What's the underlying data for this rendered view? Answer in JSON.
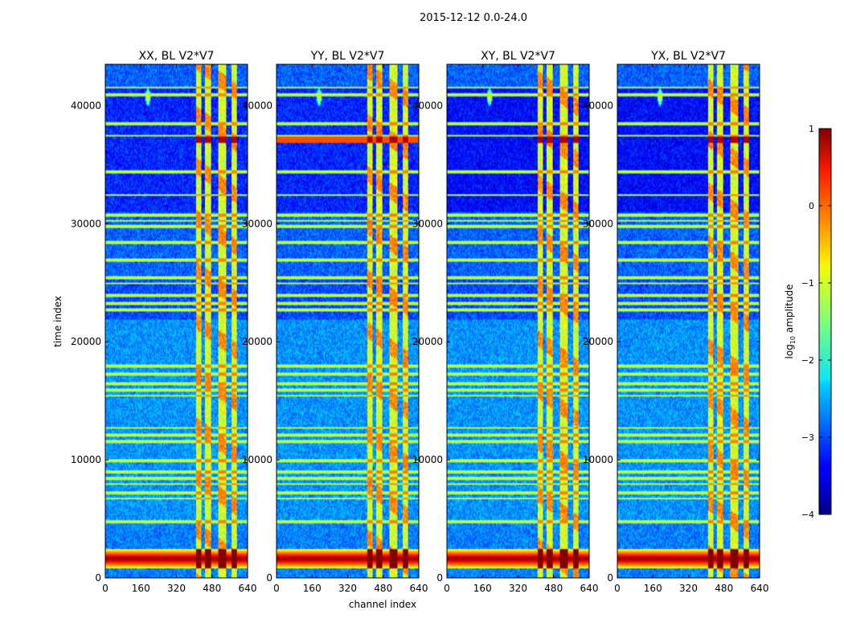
{
  "figure": {
    "suptitle": "2015-12-12 0.0-24.0"
  },
  "chart_data": {
    "type": "heatmap",
    "suptitle": "2015-12-12 0.0-24.0",
    "xlabel": "channel index",
    "ylabel": "time index",
    "xlim": [
      0,
      640
    ],
    "ylim": [
      0,
      43500
    ],
    "xticks": [
      0,
      160,
      320,
      480,
      640
    ],
    "yticks": [
      0,
      10000,
      20000,
      30000,
      40000
    ],
    "panels": [
      {
        "title": "XX, BL V2*V7",
        "polarization": "XX",
        "baseline": "V2*V7"
      },
      {
        "title": "YY, BL V2*V7",
        "polarization": "YY",
        "baseline": "V2*V7"
      },
      {
        "title": "XY, BL V2*V7",
        "polarization": "XY",
        "baseline": "V2*V7"
      },
      {
        "title": "YX, BL V2*V7",
        "polarization": "YX",
        "baseline": "V2*V7"
      }
    ],
    "colorbar": {
      "label": "log10 amplitude",
      "label_base": "log",
      "label_sub": "10",
      "label_rest": " amplitude",
      "range": [
        -4,
        1
      ],
      "ticks": [
        "1",
        "0",
        "−1",
        "−2",
        "−3",
        "−4"
      ],
      "colormap": "jet"
    },
    "features": {
      "bright_channel_bands": [
        [
          405,
          430
        ],
        [
          445,
          475
        ],
        [
          505,
          540
        ],
        [
          565,
          590
        ]
      ],
      "saturated_time_ranges": [
        [
          900,
          2500
        ],
        [
          36900,
          37400
        ]
      ],
      "flagged_rows": [
        4800,
        6800,
        7300,
        8000,
        8500,
        9000,
        10000,
        11600,
        12200,
        12800,
        15500,
        16000,
        16500,
        17300,
        18000,
        22800,
        23300,
        24000,
        25000,
        25500,
        27000,
        28500,
        29800,
        30300,
        30800,
        32500,
        34500,
        37500,
        38500,
        41000,
        41600
      ],
      "point_source": {
        "channel": 190,
        "time": 40800
      }
    }
  }
}
